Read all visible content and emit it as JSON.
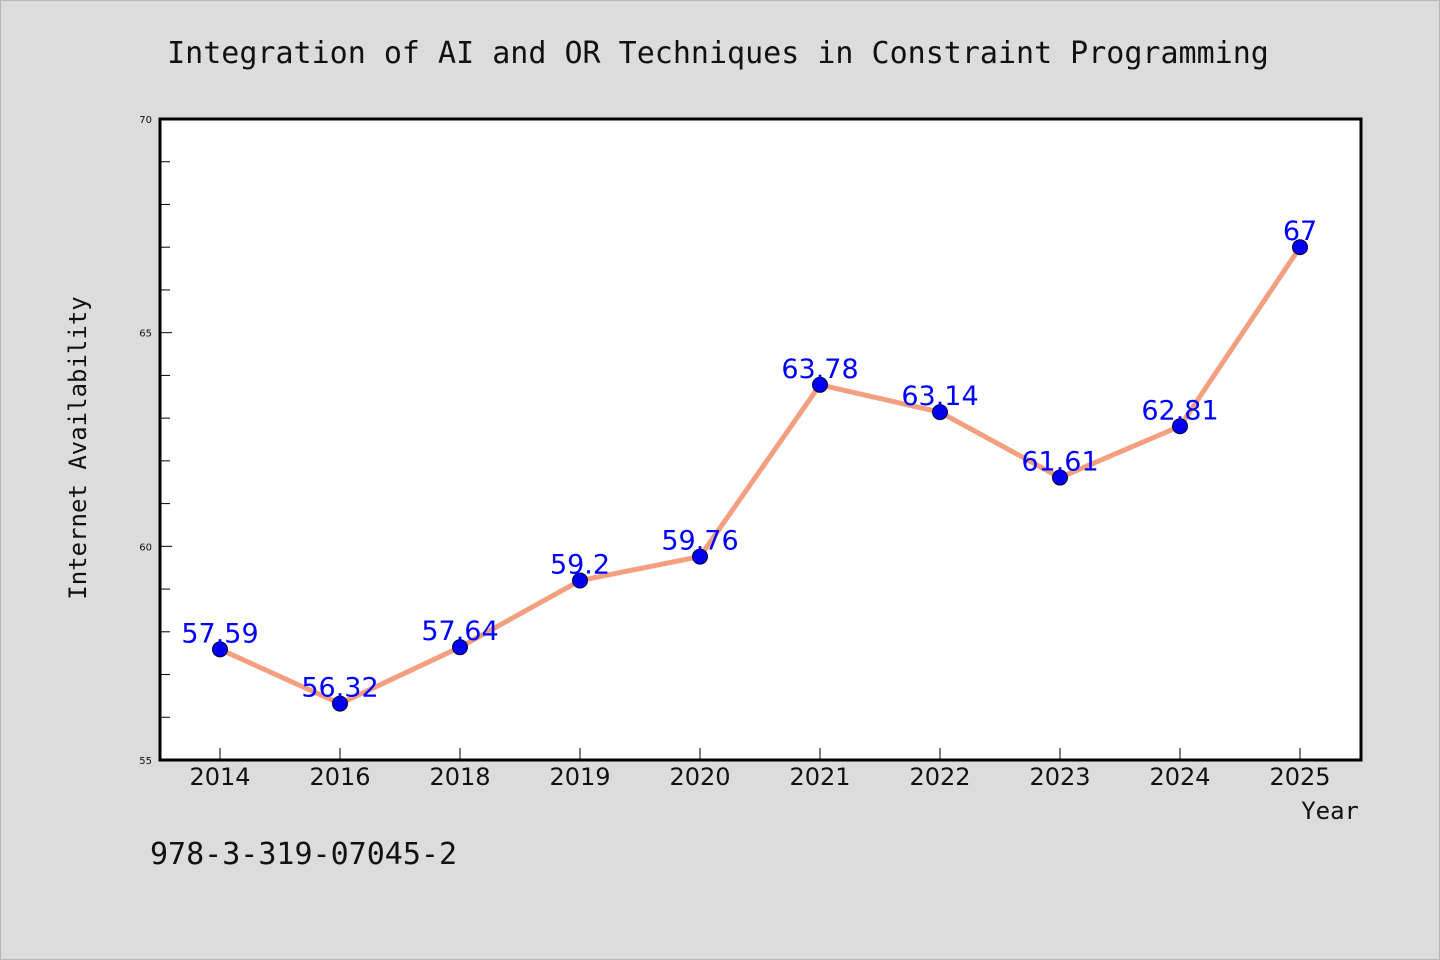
{
  "chart_data": {
    "type": "line",
    "title": "Integration of AI and OR Techniques in Constraint Programming",
    "xlabel": "Year",
    "ylabel": "Internet Availability",
    "categories": [
      "2014",
      "2016",
      "2018",
      "2019",
      "2020",
      "2021",
      "2022",
      "2023",
      "2024",
      "2025"
    ],
    "series": [
      {
        "values": [
          57.59,
          56.32,
          57.64,
          59.2,
          59.76,
          63.78,
          63.14,
          61.61,
          62.81,
          67
        ]
      }
    ],
    "data_labels": [
      "57.59",
      "56.32",
      "57.64",
      "59.2",
      "59.76",
      "63.78",
      "63.14",
      "61.61",
      "62.81",
      "67"
    ],
    "ylim": [
      55,
      70
    ],
    "yticks": [
      "55",
      "60",
      "65",
      "70"
    ],
    "grid": false,
    "legend": "none",
    "line_color": "#f4a080",
    "marker_color": "#0000ee",
    "label_color": "#0000ff"
  },
  "footer": {
    "isbn": "978-3-319-07045-2"
  }
}
